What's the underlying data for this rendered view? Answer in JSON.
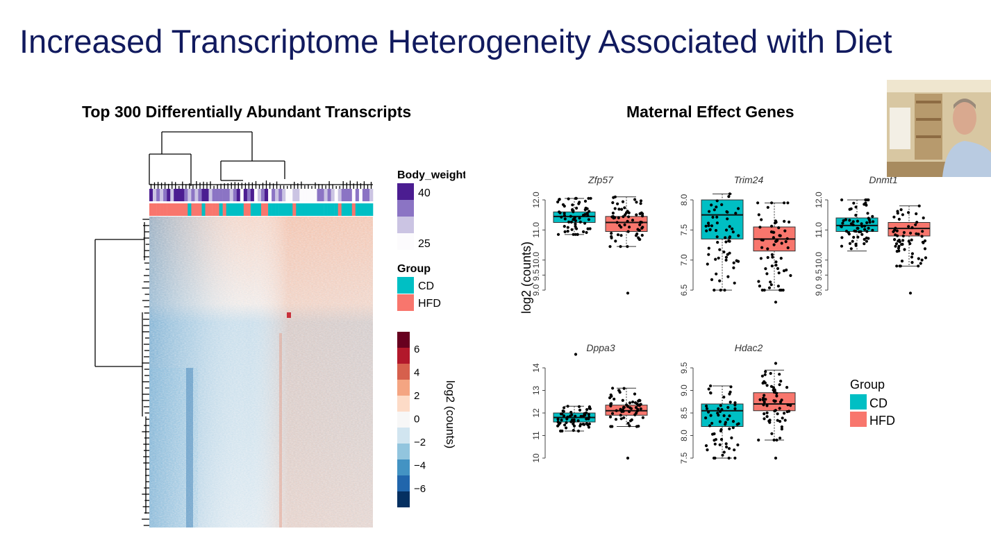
{
  "slide": {
    "title": "Increased Transcriptome Heterogeneity Associated with Diet"
  },
  "colors": {
    "title": "#111a5e",
    "cd": "#00bfc4",
    "hfd": "#f8766d"
  },
  "chart_data": [
    {
      "type": "heatmap",
      "title": "Top 300 Differentially Abundant Transcripts",
      "annotation_legends": [
        {
          "title": "Body_weight",
          "labels": [
            "40",
            "25"
          ],
          "range": [
            25,
            40
          ],
          "colors": [
            "#4b1d91",
            "#8b74c4",
            "#cbc4e3",
            "#fcfbfd"
          ]
        },
        {
          "title": "Group",
          "items": [
            {
              "label": "CD",
              "color": "#00bfc4"
            },
            {
              "label": "HFD",
              "color": "#f8766d"
            }
          ]
        }
      ],
      "color_legend": {
        "title": "log2 (counts)",
        "ticks": [
          "6",
          "4",
          "2",
          "0",
          "−2",
          "−4",
          "−6"
        ],
        "colors": [
          "#67001f",
          "#b2182b",
          "#d6604d",
          "#f4a582",
          "#fddbc7",
          "#f7f7f7",
          "#d1e5f0",
          "#92c5de",
          "#4393c3",
          "#2166ac",
          "#053061"
        ]
      }
    },
    {
      "type": "box",
      "title": "Maternal Effect Genes",
      "ylabel": "log2 (counts)",
      "groups": [
        "CD",
        "HFD"
      ],
      "legend": {
        "title": "Group",
        "labels": [
          "CD",
          "HFD"
        ],
        "placement": "right"
      },
      "panels": [
        {
          "gene": "Zfp57",
          "ylim": [
            9.0,
            12.0
          ],
          "yticks": [
            "9.0",
            "9.5",
            "10.0",
            "11.0",
            "12.0"
          ],
          "ytick_values": [
            9.0,
            9.5,
            10.0,
            11.0,
            12.0
          ],
          "CD": {
            "min": 10.85,
            "q1": 11.25,
            "median": 11.45,
            "q3": 11.6,
            "max": 12.05
          },
          "HFD": {
            "min": 10.45,
            "q1": 10.95,
            "median": 11.25,
            "q3": 11.45,
            "max": 12.1,
            "outliers": [
              8.9
            ]
          }
        },
        {
          "gene": "Trim24",
          "ylim": [
            6.5,
            8.0
          ],
          "yticks": [
            "6.5",
            "7.0",
            "7.5",
            "8.0"
          ],
          "ytick_values": [
            6.5,
            7.0,
            7.5,
            8.0
          ],
          "CD": {
            "min": 6.5,
            "q1": 7.35,
            "median": 7.75,
            "q3": 8.0,
            "max": 8.1
          },
          "HFD": {
            "min": 6.5,
            "q1": 7.15,
            "median": 7.35,
            "q3": 7.55,
            "max": 7.95,
            "outliers": [
              6.3
            ]
          }
        },
        {
          "gene": "Dnmt1",
          "ylim": [
            9.0,
            12.0
          ],
          "yticks": [
            "9.0",
            "9.5",
            "10.0",
            "11.0",
            "12.0"
          ],
          "ytick_values": [
            9.0,
            9.5,
            10.0,
            11.0,
            12.0
          ],
          "CD": {
            "min": 10.3,
            "q1": 10.95,
            "median": 11.15,
            "q3": 11.4,
            "max": 12.0
          },
          "HFD": {
            "min": 9.8,
            "q1": 10.8,
            "median": 11.05,
            "q3": 11.25,
            "max": 11.8,
            "outliers": [
              8.9
            ]
          }
        },
        {
          "gene": "Dppa3",
          "ylim": [
            10,
            14
          ],
          "yticks": [
            "10",
            "11",
            "12",
            "13",
            "14"
          ],
          "ytick_values": [
            10,
            11,
            12,
            13,
            14
          ],
          "CD": {
            "min": 11.2,
            "q1": 11.6,
            "median": 11.8,
            "q3": 12.0,
            "max": 12.3,
            "outliers": [
              14.6
            ]
          },
          "HFD": {
            "min": 11.4,
            "q1": 11.9,
            "median": 12.1,
            "q3": 12.35,
            "max": 13.1,
            "outliers": [
              10.0
            ]
          }
        },
        {
          "gene": "Hdac2",
          "ylim": [
            7.5,
            9.5
          ],
          "yticks": [
            "7.5",
            "8.0",
            "8.5",
            "9.0",
            "9.5"
          ],
          "ytick_values": [
            7.5,
            8.0,
            8.5,
            9.0,
            9.5
          ],
          "CD": {
            "min": 7.5,
            "q1": 8.2,
            "median": 8.55,
            "q3": 8.7,
            "max": 9.1
          },
          "HFD": {
            "min": 7.9,
            "q1": 8.55,
            "median": 8.7,
            "q3": 8.95,
            "max": 9.45,
            "outliers": [
              9.6,
              7.5
            ]
          }
        }
      ]
    }
  ]
}
